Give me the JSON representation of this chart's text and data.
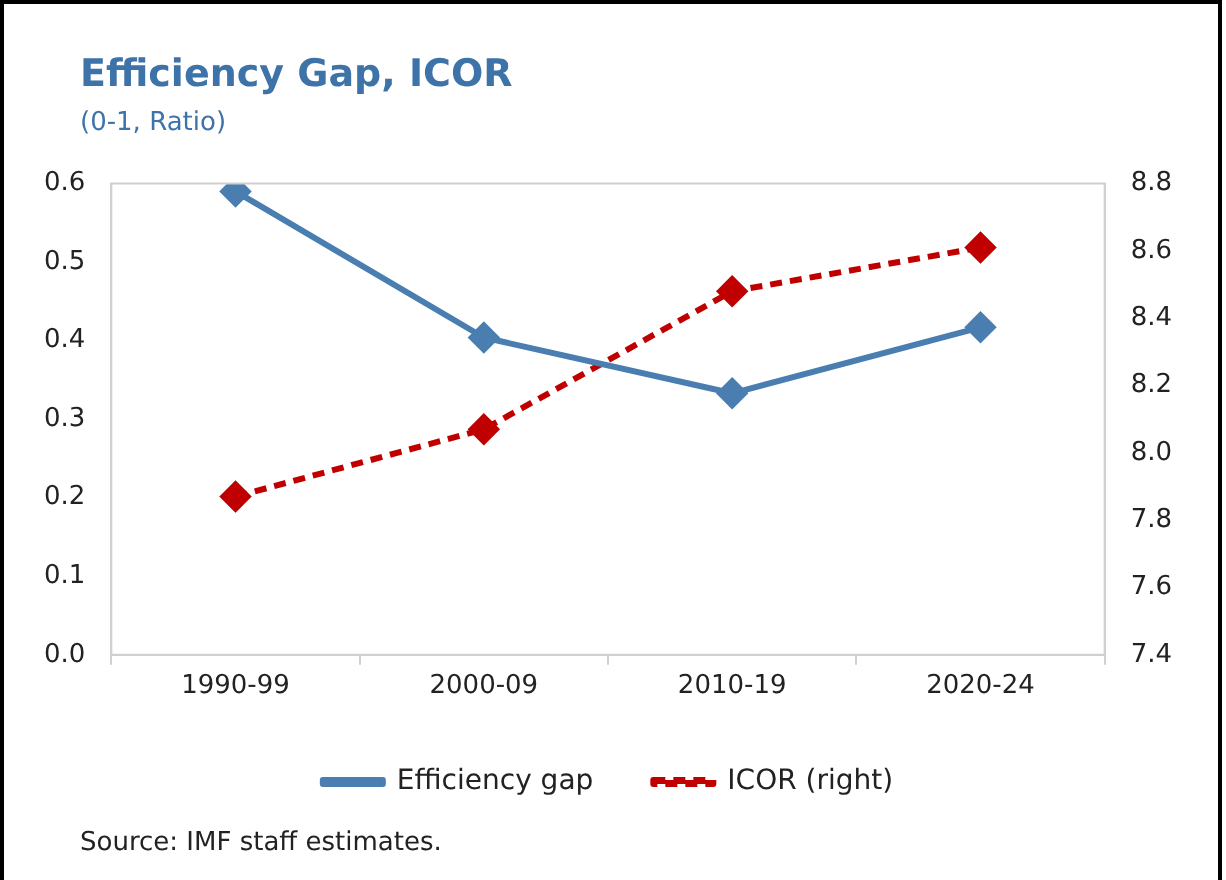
{
  "chart_data": {
    "type": "line",
    "title": "Efficiency Gap, ICOR",
    "subtitle": "(0-1, Ratio)",
    "categories": [
      "1990-99",
      "2000-09",
      "2010-19",
      "2020-24"
    ],
    "series": [
      {
        "name": "Efficiency gap",
        "color": "#4a7eb0",
        "values": [
          0.59,
          0.404,
          0.333,
          0.417
        ],
        "marker": "diamond",
        "line_style": "solid"
      },
      {
        "name": "ICOR (right)",
        "color": "#c00000",
        "values": [
          7.87,
          8.07,
          8.48,
          8.61
        ],
        "axis": "y2",
        "marker": "diamond",
        "line_style": "dashed"
      }
    ],
    "ylim": [
      0,
      0.6
    ],
    "yticks": [
      {
        "value": 0,
        "label": "0.0"
      },
      0.1,
      0.2,
      0.3,
      0.4,
      0.5,
      0.6
    ],
    "y2lim": [
      7.4,
      8.8
    ],
    "y2ticks": [
      7.4,
      7.6,
      7.8,
      {
        "value": 8,
        "label": "8.0"
      },
      8.2,
      8.4,
      8.6,
      8.8
    ],
    "grid": false,
    "legend": "bottom",
    "annotations": [
      "Source: IMF staff estimates."
    ]
  }
}
